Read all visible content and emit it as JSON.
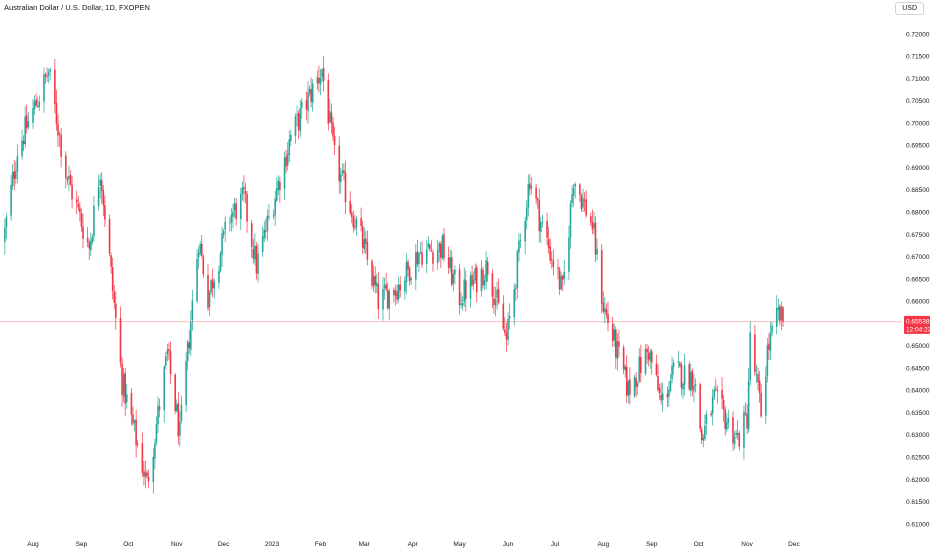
{
  "header": {
    "title": "Australian Dollar / U.S. Dollar, 1D, FXOPEN",
    "currency": "USD"
  },
  "colors": {
    "up": "#26a69a",
    "down": "#f23645",
    "price_line": "#f23645",
    "axis_text": "#131722",
    "background": "#ffffff"
  },
  "price_tag": {
    "price": "0.65538",
    "countdown": "12:04:23"
  },
  "chart_data": {
    "type": "candlestick",
    "title": "Australian Dollar / U.S. Dollar, 1D, FXOPEN",
    "ylim": [
      0.605,
      0.7235
    ],
    "y_ticks": [
      "0.72000",
      "0.71500",
      "0.71000",
      "0.70500",
      "0.70000",
      "0.69500",
      "0.69000",
      "0.68500",
      "0.68000",
      "0.67500",
      "0.67000",
      "0.66500",
      "0.66000",
      "0.65500",
      "0.65000",
      "0.64500",
      "0.64000",
      "0.63500",
      "0.63000",
      "0.62500",
      "0.62000",
      "0.61500",
      "0.61000"
    ],
    "x_ticks": [
      "Aug",
      "Sep",
      "Oct",
      "Nov",
      "Dec",
      "2023",
      "Feb",
      "Mar",
      "Apr",
      "May",
      "Jun",
      "Jul",
      "Aug",
      "Sep",
      "Oct",
      "Nov",
      "Dec"
    ],
    "current_price": 0.65538,
    "grid": false,
    "trend_anchors": [
      [
        "2022-07-14",
        0.6755
      ],
      [
        "2022-07-22",
        0.694
      ],
      [
        "2022-08-11",
        0.7115
      ],
      [
        "2022-08-22",
        0.689
      ],
      [
        "2022-09-06",
        0.672
      ],
      [
        "2022-09-13",
        0.69
      ],
      [
        "2022-09-27",
        0.642
      ],
      [
        "2022-10-13",
        0.619
      ],
      [
        "2022-10-26",
        0.648
      ],
      [
        "2022-11-03",
        0.63
      ],
      [
        "2022-11-15",
        0.674
      ],
      [
        "2022-11-21",
        0.661
      ],
      [
        "2022-12-05",
        0.679
      ],
      [
        "2022-12-14",
        0.683
      ],
      [
        "2022-12-22",
        0.668
      ],
      [
        "2023-01-13",
        0.697
      ],
      [
        "2023-02-02",
        0.712
      ],
      [
        "2023-02-10",
        0.692
      ],
      [
        "2023-02-28",
        0.673
      ],
      [
        "2023-03-10",
        0.66
      ],
      [
        "2023-03-24",
        0.664
      ],
      [
        "2023-04-05",
        0.671
      ],
      [
        "2023-04-20",
        0.672
      ],
      [
        "2023-05-01",
        0.661
      ],
      [
        "2023-05-12",
        0.665
      ],
      [
        "2023-05-19",
        0.668
      ],
      [
        "2023-05-31",
        0.651
      ],
      [
        "2023-06-15",
        0.688
      ],
      [
        "2023-06-21",
        0.679
      ],
      [
        "2023-07-06",
        0.662
      ],
      [
        "2023-07-13",
        0.688
      ],
      [
        "2023-07-25",
        0.677
      ],
      [
        "2023-08-01",
        0.659
      ],
      [
        "2023-08-17",
        0.64
      ],
      [
        "2023-08-30",
        0.649
      ],
      [
        "2023-09-07",
        0.637
      ],
      [
        "2023-09-15",
        0.644
      ],
      [
        "2023-09-28",
        0.643
      ],
      [
        "2023-10-03",
        0.629
      ],
      [
        "2023-10-11",
        0.638
      ],
      [
        "2023-10-26",
        0.629
      ],
      [
        "2023-11-01",
        0.634
      ],
      [
        "2023-11-03",
        0.651
      ],
      [
        "2023-11-10",
        0.635
      ],
      [
        "2023-11-14",
        0.649
      ],
      [
        "2023-11-21",
        0.657
      ],
      [
        "2023-11-24",
        0.65538
      ]
    ]
  }
}
